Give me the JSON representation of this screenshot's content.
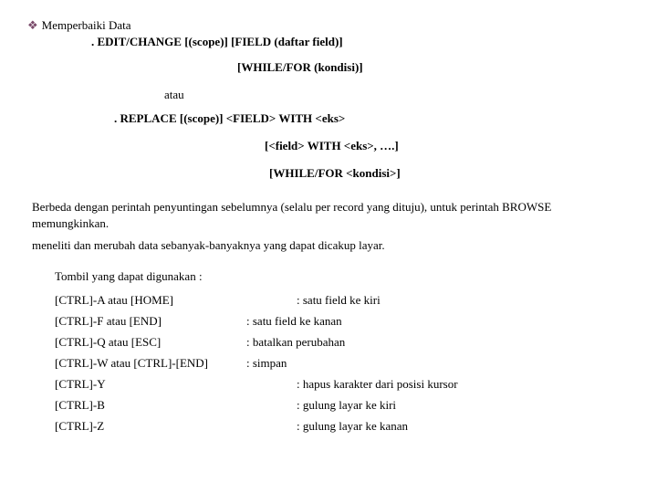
{
  "title": "Memperbaiki Data",
  "syntax1": ". EDIT/CHANGE [(scope)] [FIELD (daftar field)]",
  "syntax1b": "[WHILE/FOR (kondisi)]",
  "atau": "atau",
  "syntax2": ". REPLACE [(scope)] <FIELD> WITH <eks>",
  "syntax2b": "[<field> WITH <eks>, ….]",
  "syntax2c": "[WHILE/FOR <kondisi>]",
  "para1": "Berbeda dengan perintah penyuntingan sebelumnya (selalu per record yang dituju), untuk perintah BROWSE memungkinkan.",
  "para2": "meneliti dan merubah data sebanyak-banyaknya yang dapat dicakup layar.",
  "tombil": "Tombil yang dapat digunakan :",
  "keys": [
    {
      "k": "[CTRL]-A atau [HOME]",
      "d": ": satu field ke kiri",
      "shift": true
    },
    {
      "k": "[CTRL]-F atau [END]",
      "d": ": satu field ke kanan",
      "shift": false
    },
    {
      "k": "[CTRL]-Q atau [ESC]",
      "d": ": batalkan perubahan",
      "shift": false
    },
    {
      "k": "[CTRL]-W atau [CTRL]-[END]",
      "d": ": simpan",
      "shift": false
    },
    {
      "k": "[CTRL]-Y",
      "d": ": hapus karakter dari posisi kursor",
      "shift": true
    },
    {
      "k": "[CTRL]-B",
      "d": ": gulung layar ke kiri",
      "shift": true
    },
    {
      "k": "[CTRL]-Z",
      "d": ": gulung layar ke kanan",
      "shift": true
    }
  ]
}
